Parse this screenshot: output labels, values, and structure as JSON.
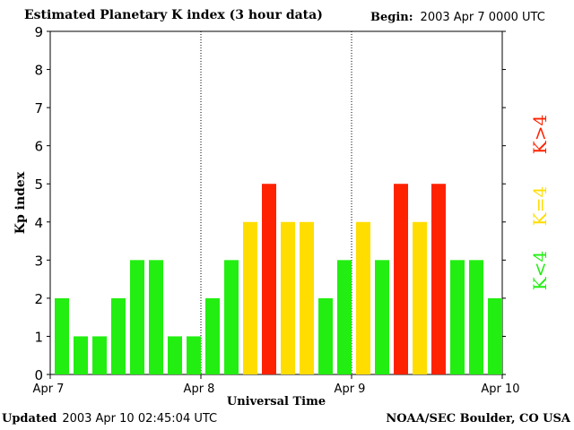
{
  "header": {
    "title": "Estimated Planetary K index (3 hour data)",
    "begin_label": "Begin:",
    "begin_value": "2003 Apr 7 0000 UTC"
  },
  "footer": {
    "updated_label": "Updated",
    "updated_value": "2003 Apr 10 02:45:04 UTC",
    "credit": "NOAA/SEC Boulder, CO USA"
  },
  "legend": {
    "high": "K>4",
    "mid": "K=4",
    "low": "K<4"
  },
  "colors": {
    "low": "#22ee11",
    "mid": "#ffdd00",
    "high": "#ff2200"
  },
  "chart_data": {
    "type": "bar",
    "title": "Estimated Planetary K index (3 hour data)",
    "xlabel": "Universal Time",
    "ylabel": "Kp index",
    "ylim": [
      0,
      9
    ],
    "yticks": [
      0,
      1,
      2,
      3,
      4,
      5,
      6,
      7,
      8,
      9
    ],
    "xticks": [
      "Apr 7",
      "Apr 8",
      "Apr 9",
      "Apr 10"
    ],
    "grid": false,
    "day_separators": "dotted",
    "values": [
      2,
      1,
      1,
      2,
      3,
      3,
      1,
      1,
      2,
      3,
      4,
      5,
      4,
      4,
      2,
      3,
      4,
      3,
      5,
      4,
      5,
      3,
      3,
      2
    ]
  }
}
